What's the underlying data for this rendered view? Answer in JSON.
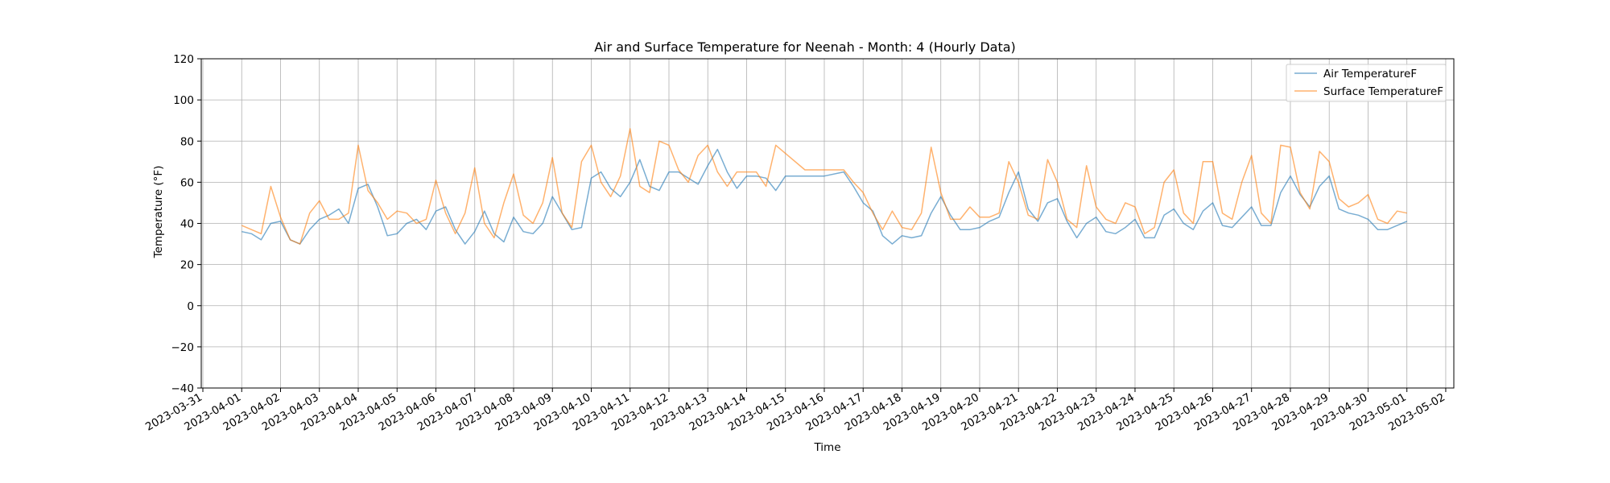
{
  "chart_data": {
    "type": "line",
    "title": "Air and Surface Temperature for Neenah - Month: 4 (Hourly Data)",
    "xlabel": "Time",
    "ylabel": "Temperature (°F)",
    "ylim": [
      -40,
      120
    ],
    "yticks": [
      -40,
      -20,
      0,
      20,
      40,
      60,
      80,
      100,
      120
    ],
    "ytick_labels": [
      "−40",
      "−20",
      "0",
      "20",
      "40",
      "60",
      "80",
      "100",
      "120"
    ],
    "xlim": [
      "2023-03-30T23:00",
      "2023-05-02T05:00"
    ],
    "xtick_labels": [
      "2023-03-31",
      "2023-04-01",
      "2023-04-02",
      "2023-04-03",
      "2023-04-04",
      "2023-04-05",
      "2023-04-06",
      "2023-04-07",
      "2023-04-08",
      "2023-04-09",
      "2023-04-10",
      "2023-04-11",
      "2023-04-12",
      "2023-04-13",
      "2023-04-14",
      "2023-04-15",
      "2023-04-16",
      "2023-04-17",
      "2023-04-18",
      "2023-04-19",
      "2023-04-20",
      "2023-04-21",
      "2023-04-22",
      "2023-04-23",
      "2023-04-24",
      "2023-04-25",
      "2023-04-26",
      "2023-04-27",
      "2023-04-28",
      "2023-04-29",
      "2023-04-30",
      "2023-05-01",
      "2023-05-02"
    ],
    "grid": true,
    "legend_position": "top-right",
    "series": [
      {
        "name": "Air TemperatureF",
        "color": "#1f77b4",
        "points": [
          [
            "2023-04-01T00:00",
            36
          ],
          [
            "2023-04-01T06:00",
            35
          ],
          [
            "2023-04-01T12:00",
            32
          ],
          [
            "2023-04-01T18:00",
            40
          ],
          [
            "2023-04-02T00:00",
            41
          ],
          [
            "2023-04-02T06:00",
            32
          ],
          [
            "2023-04-02T12:00",
            30
          ],
          [
            "2023-04-02T18:00",
            37
          ],
          [
            "2023-04-03T00:00",
            42
          ],
          [
            "2023-04-03T06:00",
            44
          ],
          [
            "2023-04-03T12:00",
            47
          ],
          [
            "2023-04-03T18:00",
            40
          ],
          [
            "2023-04-04T00:00",
            57
          ],
          [
            "2023-04-04T06:00",
            59
          ],
          [
            "2023-04-04T12:00",
            48
          ],
          [
            "2023-04-04T18:00",
            34
          ],
          [
            "2023-04-05T00:00",
            35
          ],
          [
            "2023-04-05T06:00",
            40
          ],
          [
            "2023-04-05T12:00",
            42
          ],
          [
            "2023-04-05T18:00",
            37
          ],
          [
            "2023-04-06T00:00",
            46
          ],
          [
            "2023-04-06T06:00",
            48
          ],
          [
            "2023-04-06T12:00",
            37
          ],
          [
            "2023-04-06T18:00",
            30
          ],
          [
            "2023-04-07T00:00",
            36
          ],
          [
            "2023-04-07T06:00",
            46
          ],
          [
            "2023-04-07T12:00",
            35
          ],
          [
            "2023-04-07T18:00",
            31
          ],
          [
            "2023-04-08T00:00",
            43
          ],
          [
            "2023-04-08T06:00",
            36
          ],
          [
            "2023-04-08T12:00",
            35
          ],
          [
            "2023-04-08T18:00",
            40
          ],
          [
            "2023-04-09T00:00",
            53
          ],
          [
            "2023-04-09T06:00",
            45
          ],
          [
            "2023-04-09T12:00",
            37
          ],
          [
            "2023-04-09T18:00",
            38
          ],
          [
            "2023-04-10T00:00",
            62
          ],
          [
            "2023-04-10T06:00",
            65
          ],
          [
            "2023-04-10T12:00",
            57
          ],
          [
            "2023-04-10T18:00",
            53
          ],
          [
            "2023-04-11T00:00",
            60
          ],
          [
            "2023-04-11T06:00",
            71
          ],
          [
            "2023-04-11T12:00",
            58
          ],
          [
            "2023-04-11T18:00",
            56
          ],
          [
            "2023-04-12T00:00",
            65
          ],
          [
            "2023-04-12T06:00",
            65
          ],
          [
            "2023-04-12T12:00",
            62
          ],
          [
            "2023-04-12T18:00",
            59
          ],
          [
            "2023-04-13T00:00",
            68
          ],
          [
            "2023-04-13T06:00",
            76
          ],
          [
            "2023-04-13T12:00",
            65
          ],
          [
            "2023-04-13T18:00",
            57
          ],
          [
            "2023-04-14T00:00",
            63
          ],
          [
            "2023-04-14T06:00",
            63
          ],
          [
            "2023-04-14T12:00",
            62
          ],
          [
            "2023-04-14T18:00",
            56
          ],
          [
            "2023-04-15T00:00",
            63
          ],
          [
            "2023-04-15T12:00",
            63
          ],
          [
            "2023-04-16T00:00",
            63
          ],
          [
            "2023-04-16T12:00",
            65
          ],
          [
            "2023-04-16T18:00",
            58
          ],
          [
            "2023-04-17T00:00",
            50
          ],
          [
            "2023-04-17T06:00",
            46
          ],
          [
            "2023-04-17T12:00",
            34
          ],
          [
            "2023-04-17T18:00",
            30
          ],
          [
            "2023-04-18T00:00",
            34
          ],
          [
            "2023-04-18T06:00",
            33
          ],
          [
            "2023-04-18T12:00",
            34
          ],
          [
            "2023-04-18T18:00",
            45
          ],
          [
            "2023-04-19T00:00",
            53
          ],
          [
            "2023-04-19T06:00",
            44
          ],
          [
            "2023-04-19T12:00",
            37
          ],
          [
            "2023-04-19T18:00",
            37
          ],
          [
            "2023-04-20T00:00",
            38
          ],
          [
            "2023-04-20T06:00",
            41
          ],
          [
            "2023-04-20T12:00",
            43
          ],
          [
            "2023-04-20T18:00",
            55
          ],
          [
            "2023-04-21T00:00",
            65
          ],
          [
            "2023-04-21T06:00",
            47
          ],
          [
            "2023-04-21T12:00",
            41
          ],
          [
            "2023-04-21T18:00",
            50
          ],
          [
            "2023-04-22T00:00",
            52
          ],
          [
            "2023-04-22T06:00",
            41
          ],
          [
            "2023-04-22T12:00",
            33
          ],
          [
            "2023-04-22T18:00",
            40
          ],
          [
            "2023-04-23T00:00",
            43
          ],
          [
            "2023-04-23T06:00",
            36
          ],
          [
            "2023-04-23T12:00",
            35
          ],
          [
            "2023-04-23T18:00",
            38
          ],
          [
            "2023-04-24T00:00",
            42
          ],
          [
            "2023-04-24T06:00",
            33
          ],
          [
            "2023-04-24T12:00",
            33
          ],
          [
            "2023-04-24T18:00",
            44
          ],
          [
            "2023-04-25T00:00",
            47
          ],
          [
            "2023-04-25T06:00",
            40
          ],
          [
            "2023-04-25T12:00",
            37
          ],
          [
            "2023-04-25T18:00",
            46
          ],
          [
            "2023-04-26T00:00",
            50
          ],
          [
            "2023-04-26T06:00",
            39
          ],
          [
            "2023-04-26T12:00",
            38
          ],
          [
            "2023-04-26T18:00",
            43
          ],
          [
            "2023-04-27T00:00",
            48
          ],
          [
            "2023-04-27T06:00",
            39
          ],
          [
            "2023-04-27T12:00",
            39
          ],
          [
            "2023-04-27T18:00",
            55
          ],
          [
            "2023-04-28T00:00",
            63
          ],
          [
            "2023-04-28T06:00",
            54
          ],
          [
            "2023-04-28T12:00",
            48
          ],
          [
            "2023-04-28T18:00",
            58
          ],
          [
            "2023-04-29T00:00",
            63
          ],
          [
            "2023-04-29T06:00",
            47
          ],
          [
            "2023-04-29T12:00",
            45
          ],
          [
            "2023-04-29T18:00",
            44
          ],
          [
            "2023-04-30T00:00",
            42
          ],
          [
            "2023-04-30T06:00",
            37
          ],
          [
            "2023-04-30T12:00",
            37
          ],
          [
            "2023-04-30T18:00",
            39
          ],
          [
            "2023-05-01T00:00",
            41
          ]
        ]
      },
      {
        "name": "Surface TemperatureF",
        "color": "#ff7f0e",
        "points": [
          [
            "2023-04-01T00:00",
            39
          ],
          [
            "2023-04-01T06:00",
            37
          ],
          [
            "2023-04-01T12:00",
            35
          ],
          [
            "2023-04-01T18:00",
            58
          ],
          [
            "2023-04-02T00:00",
            43
          ],
          [
            "2023-04-02T06:00",
            32
          ],
          [
            "2023-04-02T12:00",
            30
          ],
          [
            "2023-04-02T18:00",
            45
          ],
          [
            "2023-04-03T00:00",
            51
          ],
          [
            "2023-04-03T06:00",
            42
          ],
          [
            "2023-04-03T12:00",
            42
          ],
          [
            "2023-04-03T18:00",
            45
          ],
          [
            "2023-04-04T00:00",
            78
          ],
          [
            "2023-04-04T06:00",
            56
          ],
          [
            "2023-04-04T12:00",
            50
          ],
          [
            "2023-04-04T18:00",
            42
          ],
          [
            "2023-04-05T00:00",
            46
          ],
          [
            "2023-04-05T06:00",
            45
          ],
          [
            "2023-04-05T12:00",
            40
          ],
          [
            "2023-04-05T18:00",
            42
          ],
          [
            "2023-04-06T00:00",
            61
          ],
          [
            "2023-04-06T06:00",
            45
          ],
          [
            "2023-04-06T12:00",
            35
          ],
          [
            "2023-04-06T18:00",
            45
          ],
          [
            "2023-04-07T00:00",
            67
          ],
          [
            "2023-04-07T06:00",
            40
          ],
          [
            "2023-04-07T12:00",
            33
          ],
          [
            "2023-04-07T18:00",
            50
          ],
          [
            "2023-04-08T00:00",
            64
          ],
          [
            "2023-04-08T06:00",
            44
          ],
          [
            "2023-04-08T12:00",
            40
          ],
          [
            "2023-04-08T18:00",
            50
          ],
          [
            "2023-04-09T00:00",
            72
          ],
          [
            "2023-04-09T06:00",
            45
          ],
          [
            "2023-04-09T12:00",
            38
          ],
          [
            "2023-04-09T18:00",
            70
          ],
          [
            "2023-04-10T00:00",
            78
          ],
          [
            "2023-04-10T06:00",
            60
          ],
          [
            "2023-04-10T12:00",
            53
          ],
          [
            "2023-04-10T18:00",
            63
          ],
          [
            "2023-04-11T00:00",
            86
          ],
          [
            "2023-04-11T06:00",
            58
          ],
          [
            "2023-04-11T12:00",
            55
          ],
          [
            "2023-04-11T18:00",
            80
          ],
          [
            "2023-04-12T00:00",
            78
          ],
          [
            "2023-04-12T06:00",
            66
          ],
          [
            "2023-04-12T12:00",
            60
          ],
          [
            "2023-04-12T18:00",
            73
          ],
          [
            "2023-04-13T00:00",
            78
          ],
          [
            "2023-04-13T06:00",
            65
          ],
          [
            "2023-04-13T12:00",
            58
          ],
          [
            "2023-04-13T18:00",
            65
          ],
          [
            "2023-04-14T00:00",
            65
          ],
          [
            "2023-04-14T06:00",
            65
          ],
          [
            "2023-04-14T12:00",
            58
          ],
          [
            "2023-04-14T18:00",
            78
          ],
          [
            "2023-04-15T00:00",
            74
          ],
          [
            "2023-04-15T12:00",
            66
          ],
          [
            "2023-04-16T00:00",
            66
          ],
          [
            "2023-04-16T12:00",
            66
          ],
          [
            "2023-04-16T18:00",
            60
          ],
          [
            "2023-04-17T00:00",
            55
          ],
          [
            "2023-04-17T06:00",
            45
          ],
          [
            "2023-04-17T12:00",
            37
          ],
          [
            "2023-04-17T18:00",
            46
          ],
          [
            "2023-04-18T00:00",
            38
          ],
          [
            "2023-04-18T06:00",
            37
          ],
          [
            "2023-04-18T12:00",
            45
          ],
          [
            "2023-04-18T18:00",
            77
          ],
          [
            "2023-04-19T00:00",
            55
          ],
          [
            "2023-04-19T06:00",
            42
          ],
          [
            "2023-04-19T12:00",
            42
          ],
          [
            "2023-04-19T18:00",
            48
          ],
          [
            "2023-04-20T00:00",
            43
          ],
          [
            "2023-04-20T06:00",
            43
          ],
          [
            "2023-04-20T12:00",
            45
          ],
          [
            "2023-04-20T18:00",
            70
          ],
          [
            "2023-04-21T00:00",
            60
          ],
          [
            "2023-04-21T06:00",
            44
          ],
          [
            "2023-04-21T12:00",
            42
          ],
          [
            "2023-04-21T18:00",
            71
          ],
          [
            "2023-04-22T00:00",
            60
          ],
          [
            "2023-04-22T06:00",
            42
          ],
          [
            "2023-04-22T12:00",
            38
          ],
          [
            "2023-04-22T18:00",
            68
          ],
          [
            "2023-04-23T00:00",
            48
          ],
          [
            "2023-04-23T06:00",
            42
          ],
          [
            "2023-04-23T12:00",
            40
          ],
          [
            "2023-04-23T18:00",
            50
          ],
          [
            "2023-04-24T00:00",
            48
          ],
          [
            "2023-04-24T06:00",
            35
          ],
          [
            "2023-04-24T12:00",
            38
          ],
          [
            "2023-04-24T18:00",
            60
          ],
          [
            "2023-04-25T00:00",
            66
          ],
          [
            "2023-04-25T06:00",
            45
          ],
          [
            "2023-04-25T12:00",
            40
          ],
          [
            "2023-04-25T18:00",
            70
          ],
          [
            "2023-04-26T00:00",
            70
          ],
          [
            "2023-04-26T06:00",
            45
          ],
          [
            "2023-04-26T12:00",
            42
          ],
          [
            "2023-04-26T18:00",
            60
          ],
          [
            "2023-04-27T00:00",
            73
          ],
          [
            "2023-04-27T06:00",
            45
          ],
          [
            "2023-04-27T12:00",
            40
          ],
          [
            "2023-04-27T18:00",
            78
          ],
          [
            "2023-04-28T00:00",
            77
          ],
          [
            "2023-04-28T06:00",
            55
          ],
          [
            "2023-04-28T12:00",
            47
          ],
          [
            "2023-04-28T18:00",
            75
          ],
          [
            "2023-04-29T00:00",
            70
          ],
          [
            "2023-04-29T06:00",
            52
          ],
          [
            "2023-04-29T12:00",
            48
          ],
          [
            "2023-04-29T18:00",
            50
          ],
          [
            "2023-04-30T00:00",
            54
          ],
          [
            "2023-04-30T06:00",
            42
          ],
          [
            "2023-04-30T12:00",
            40
          ],
          [
            "2023-04-30T18:00",
            46
          ],
          [
            "2023-05-01T00:00",
            45
          ]
        ]
      }
    ]
  }
}
